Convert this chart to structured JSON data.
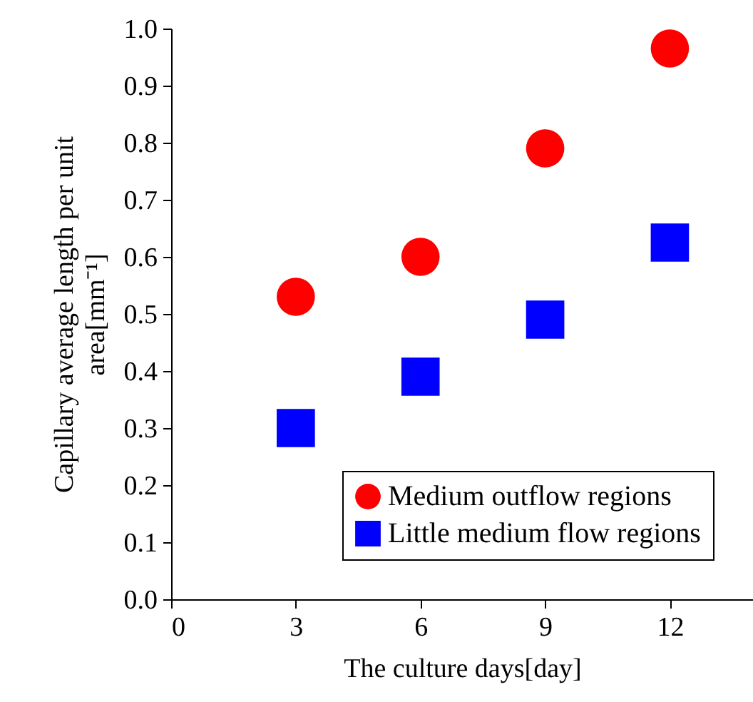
{
  "chart_data": {
    "type": "scatter",
    "xlabel": "The culture days[day]",
    "ylabel": "Capillary average length per unit area[mm⁻¹]",
    "x": [
      3,
      6,
      9,
      12
    ],
    "series": [
      {
        "name": "Medium outflow regions",
        "color": "#ff0000",
        "marker": "circle",
        "values": [
          0.53,
          0.6,
          0.79,
          0.965
        ]
      },
      {
        "name": "Little medium flow regions",
        "color": "#0000ff",
        "marker": "square",
        "values": [
          0.3,
          0.39,
          0.49,
          0.625
        ]
      }
    ],
    "xlim": [
      0,
      14
    ],
    "xticks": [
      0,
      3,
      6,
      9,
      12
    ],
    "ylim": [
      0,
      1
    ],
    "yticks": [
      {
        "value": 0,
        "label": "0.0"
      },
      0.1,
      0.2,
      0.3,
      0.4,
      0.5,
      0.6,
      0.7,
      0.8,
      0.9,
      {
        "value": 1,
        "label": "1.0"
      }
    ],
    "grid": false,
    "legend": "bottom right"
  }
}
